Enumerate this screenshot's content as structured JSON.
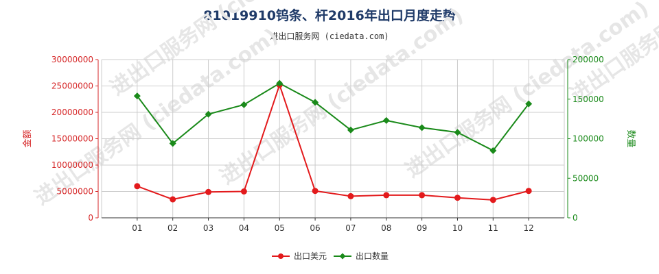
{
  "header": {
    "title": "81019910钨条、杆2016年出口月度走势",
    "subtitle": "进出口服务网 (ciedata.com)"
  },
  "watermark": "进出口服务网 (ciedata.com)",
  "colors": {
    "usd": "#e31a1c",
    "qty": "#1a8a1a",
    "grid": "#cccccc"
  },
  "chart_data": {
    "type": "line",
    "categories": [
      "01",
      "02",
      "03",
      "04",
      "05",
      "06",
      "07",
      "08",
      "09",
      "10",
      "11",
      "12"
    ],
    "series": [
      {
        "name": "出口美元",
        "axis": "left",
        "values": [
          6000000,
          3500000,
          4900000,
          5000000,
          25200000,
          5100000,
          4100000,
          4300000,
          4300000,
          3800000,
          3400000,
          5100000
        ]
      },
      {
        "name": "出口数量",
        "axis": "right",
        "values": [
          154000,
          94000,
          131000,
          143000,
          170000,
          146000,
          111000,
          123000,
          114000,
          108000,
          85000,
          144000
        ]
      }
    ],
    "ylabel_left": "金额",
    "ylabel_right": "数量",
    "ylim_left": [
      0,
      30000000
    ],
    "ylim_right": [
      0,
      200000
    ],
    "yticks_left": [
      "0",
      "5000000",
      "10000000",
      "15000000",
      "20000000",
      "25000000",
      "30000000"
    ],
    "yticks_right": [
      "0",
      "50000",
      "100000",
      "150000",
      "200000"
    ],
    "grid": true,
    "legend_position": "bottom-center"
  }
}
